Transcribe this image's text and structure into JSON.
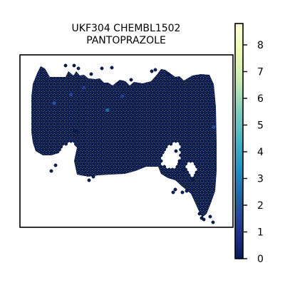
{
  "chart_data": {
    "type": "heatmap",
    "title_lines": [
      "UKF304 CHEMBL1502",
      "PANTOPRAZOLE"
    ],
    "xlabel": "",
    "ylabel": "",
    "grid": false,
    "legend": "none",
    "colorbar": {
      "position": "right",
      "range": [
        0,
        8.8
      ],
      "ticks": [
        0,
        1,
        2,
        3,
        4,
        5,
        6,
        7,
        8
      ],
      "tick_labels": [
        "0",
        "1",
        "2",
        "3",
        "4",
        "5",
        "6",
        "7",
        "8"
      ],
      "colormap_stops": [
        "#081d58",
        "#253494",
        "#225ea8",
        "#1d91c0",
        "#41b6c4",
        "#7fcdbb",
        "#c7e9b4",
        "#edf8b1",
        "#ffffd9"
      ]
    },
    "typical_value": 0.05,
    "highlight_spots": [
      {
        "x": 0.16,
        "y": 0.28,
        "value": 1.9
      },
      {
        "x": 0.24,
        "y": 0.23,
        "value": 1.6
      },
      {
        "x": 0.41,
        "y": 0.32,
        "value": 2.4
      },
      {
        "x": 0.48,
        "y": 0.24,
        "value": 1.4
      },
      {
        "x": 0.3,
        "y": 0.19,
        "value": 1.3
      },
      {
        "x": 0.91,
        "y": 0.42,
        "value": 1.5
      }
    ]
  }
}
